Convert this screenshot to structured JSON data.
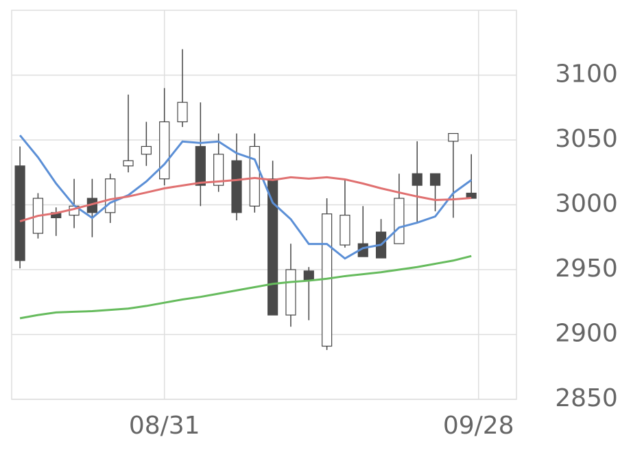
{
  "chart_data": {
    "type": "candlestick",
    "x": [
      0,
      1,
      2,
      3,
      4,
      5,
      6,
      7,
      8,
      9,
      10,
      11,
      12,
      13,
      14,
      15,
      16,
      17,
      18,
      19,
      20,
      21,
      22,
      23,
      24,
      25
    ],
    "open": [
      3030,
      2978,
      2994,
      2992,
      3005,
      2994,
      3030,
      3039,
      3020,
      3064,
      3045,
      3015,
      3034,
      2999,
      3020,
      2915,
      2949,
      2891,
      2969,
      2970,
      2979,
      2970,
      3024,
      3024,
      3049,
      3009
    ],
    "high": [
      3045,
      3009,
      2998,
      3020,
      3020,
      3024,
      3085,
      3064,
      3090,
      3120,
      3079,
      3055,
      3055,
      3055,
      3034,
      2970,
      2952,
      3005,
      3020,
      2999,
      2989,
      3024,
      3049,
      3024,
      3055,
      3039
    ],
    "low": [
      2951,
      2974,
      2976,
      2982,
      2975,
      2986,
      3025,
      3030,
      3015,
      3060,
      2999,
      3010,
      2988,
      2994,
      2915,
      2906,
      2911,
      2888,
      2967,
      2960,
      2959,
      2970,
      2986,
      2995,
      2990,
      3005
    ],
    "close": [
      2957,
      3005,
      2990,
      2999,
      2994,
      3020,
      3034,
      3045,
      3064,
      3079,
      3015,
      3039,
      2994,
      3045,
      2915,
      2950,
      2942,
      2993,
      2992,
      2960,
      2959,
      3005,
      3015,
      3015,
      3055,
      3005
    ],
    "up_color": "#ffffff",
    "down_color": "#4a4a4a",
    "series": [
      {
        "color": "#5b8fd6",
        "values": [
          3053.6,
          3036.6,
          3016.4,
          2999.5,
          2989.9,
          3001.6,
          3007.4,
          3018.0,
          3031.3,
          3048.8,
          3047.7,
          3048.8,
          3039.8,
          3035.0,
          3001.6,
          2988.9,
          2969.8,
          2969.8,
          2958.6,
          2966.6,
          2969.2,
          2982.5,
          2986.2,
          2991.0,
          3009.0,
          3019.1
        ]
      },
      {
        "color": "#e07070",
        "values": [
          2987.3,
          2991.5,
          2993.6,
          2996.8,
          3000.5,
          3004.2,
          3006.4,
          3009.5,
          3012.7,
          3014.9,
          3017.0,
          3018.0,
          3019.1,
          3020.7,
          3019.1,
          3021.2,
          3020.2,
          3021.2,
          3019.6,
          3016.4,
          3012.7,
          3009.5,
          3006.4,
          3003.7,
          3004.2,
          3005.3
        ]
      },
      {
        "color": "#66bb5d",
        "values": [
          2912.5,
          2915,
          2917,
          2917.5,
          2918,
          2919,
          2920,
          2922,
          2924.5,
          2927,
          2929,
          2931.5,
          2934,
          2936.5,
          2939,
          2940.5,
          2941.5,
          2943,
          2945,
          2946.5,
          2948,
          2950,
          2952,
          2954.5,
          2957,
          2960.5
        ]
      }
    ],
    "xlim": [
      -0.46,
      27.5
    ],
    "xticks": [
      {
        "value": 8,
        "label": "08/31"
      },
      {
        "value": 25.4,
        "label": "09/28"
      }
    ],
    "ylim": [
      2850,
      3150
    ],
    "yticks": [
      2850,
      2900,
      2950,
      3000,
      3050,
      3100
    ],
    "grid": true
  }
}
